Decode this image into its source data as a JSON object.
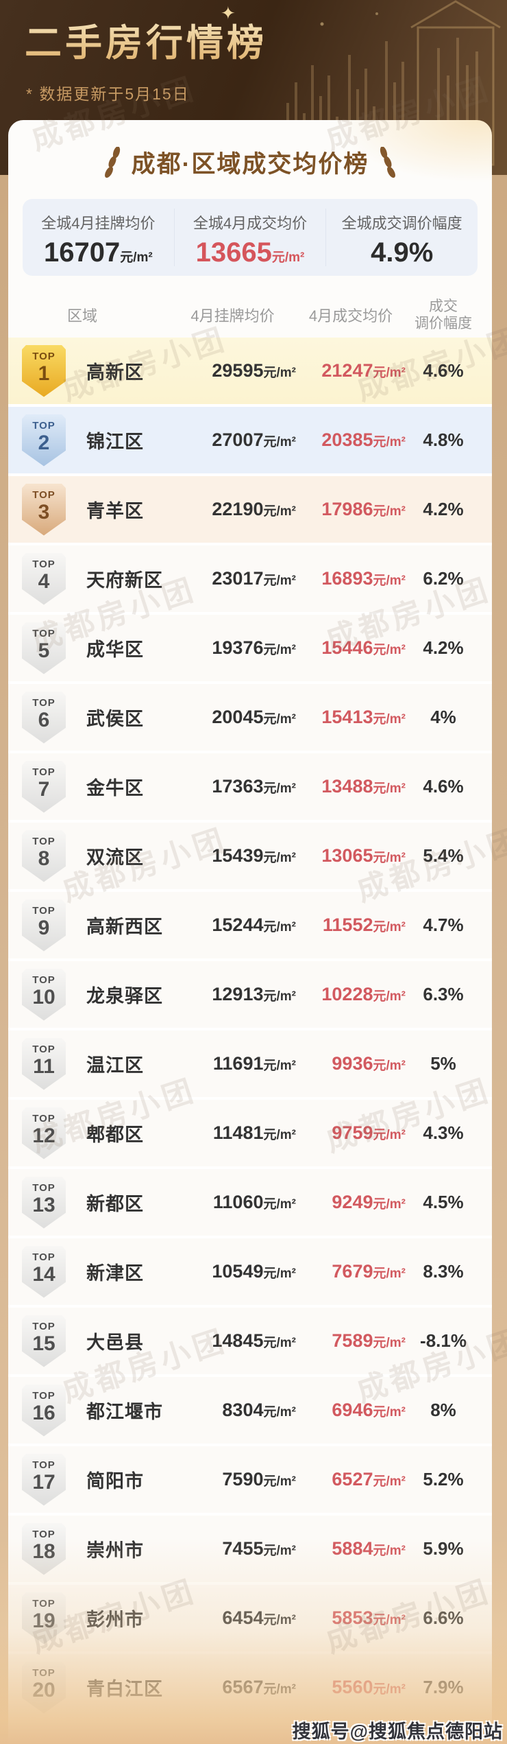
{
  "page": {
    "watermark_text": "成都房小团",
    "bottom_watermark": "搜狐号@搜狐焦点德阳站"
  },
  "header": {
    "title": "二手房行情榜",
    "subtitle": "* 数据更新于5月15日",
    "sparkle": "✦"
  },
  "colors": {
    "header_bg": "#3b2614",
    "header_gold": "#e8c57c",
    "card_title_brown": "#7d5226",
    "stats_bg": "#edf1f8",
    "deal_red": "#d2595f",
    "rank1_gold": "#e8a922",
    "rank2_blue": "#a7c3e2",
    "rank3_bronze": "#d8a97b",
    "row1_bg": "#fdf6dd",
    "row2_bg": "#e9f0fa",
    "row3_bg": "#fbf1e6"
  },
  "chart_data": {
    "type": "table",
    "title": "成都·区域成交均价榜",
    "rank_label": "TOP",
    "unit": "元/m²",
    "columns": [
      "区域",
      "4月挂牌均价",
      "4月成交均价",
      "成交\n调价幅度"
    ],
    "summary": {
      "items": [
        {
          "label": "全城4月挂牌均价",
          "value": "16707",
          "unit": "元/m²",
          "tone": "dark"
        },
        {
          "label": "全城4月成交均价",
          "value": "13665",
          "unit": "元/m²",
          "tone": "red"
        },
        {
          "label": "全城成交调价幅度",
          "value": "4.9%",
          "unit": "",
          "tone": "dark"
        }
      ]
    },
    "rows": [
      {
        "rank": 1,
        "district": "高新区",
        "listed": 29595,
        "deal": 21247,
        "rate": "4.6%"
      },
      {
        "rank": 2,
        "district": "锦江区",
        "listed": 27007,
        "deal": 20385,
        "rate": "4.8%"
      },
      {
        "rank": 3,
        "district": "青羊区",
        "listed": 22190,
        "deal": 17986,
        "rate": "4.2%"
      },
      {
        "rank": 4,
        "district": "天府新区",
        "listed": 23017,
        "deal": 16893,
        "rate": "6.2%"
      },
      {
        "rank": 5,
        "district": "成华区",
        "listed": 19376,
        "deal": 15446,
        "rate": "4.2%"
      },
      {
        "rank": 6,
        "district": "武侯区",
        "listed": 20045,
        "deal": 15413,
        "rate": "4%"
      },
      {
        "rank": 7,
        "district": "金牛区",
        "listed": 17363,
        "deal": 13488,
        "rate": "4.6%"
      },
      {
        "rank": 8,
        "district": "双流区",
        "listed": 15439,
        "deal": 13065,
        "rate": "5.4%"
      },
      {
        "rank": 9,
        "district": "高新西区",
        "listed": 15244,
        "deal": 11552,
        "rate": "4.7%"
      },
      {
        "rank": 10,
        "district": "龙泉驿区",
        "listed": 12913,
        "deal": 10228,
        "rate": "6.3%"
      },
      {
        "rank": 11,
        "district": "温江区",
        "listed": 11691,
        "deal": 9936,
        "rate": "5%"
      },
      {
        "rank": 12,
        "district": "郫都区",
        "listed": 11481,
        "deal": 9759,
        "rate": "4.3%"
      },
      {
        "rank": 13,
        "district": "新都区",
        "listed": 11060,
        "deal": 9249,
        "rate": "4.5%"
      },
      {
        "rank": 14,
        "district": "新津区",
        "listed": 10549,
        "deal": 7679,
        "rate": "8.3%"
      },
      {
        "rank": 15,
        "district": "大邑县",
        "listed": 14845,
        "deal": 7589,
        "rate": "-8.1%"
      },
      {
        "rank": 16,
        "district": "都江堰市",
        "listed": 8304,
        "deal": 6946,
        "rate": "8%"
      },
      {
        "rank": 17,
        "district": "简阳市",
        "listed": 7590,
        "deal": 6527,
        "rate": "5.2%"
      },
      {
        "rank": 18,
        "district": "崇州市",
        "listed": 7455,
        "deal": 5884,
        "rate": "5.9%"
      },
      {
        "rank": 19,
        "district": "彭州市",
        "listed": 6454,
        "deal": 5853,
        "rate": "6.6%"
      },
      {
        "rank": 20,
        "district": "青白江区",
        "listed": 6567,
        "deal": 5560,
        "rate": "7.9%"
      }
    ]
  }
}
